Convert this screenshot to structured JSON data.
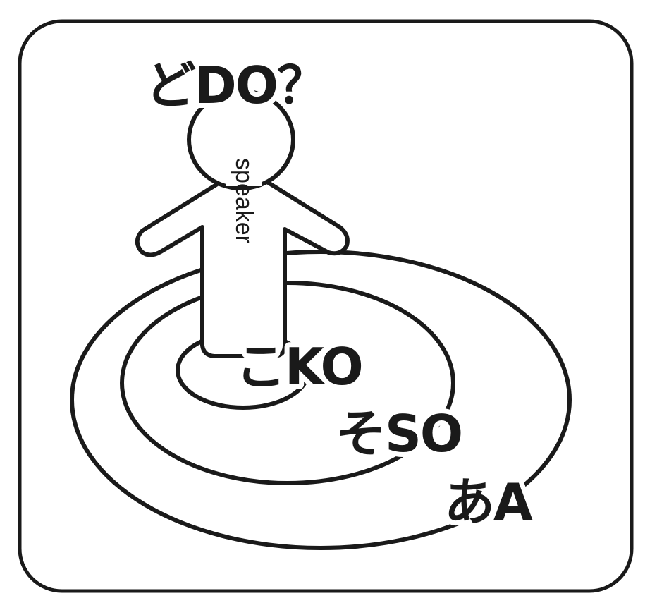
{
  "labels": {
    "do": "どDO？",
    "speaker": "speaker",
    "ko": "こKO",
    "so": "そSO",
    "a": "あA"
  },
  "colors": {
    "ink": "#1a1a1a",
    "background": "#ffffff"
  }
}
